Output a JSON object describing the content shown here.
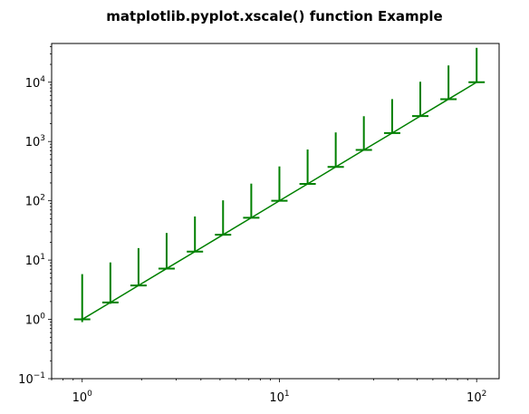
{
  "chart_data": {
    "type": "line",
    "title": "matplotlib.pyplot.xscale() function Example",
    "xlabel": "",
    "ylabel": "",
    "xscale": "log",
    "yscale": "log",
    "xlim": [
      0.7,
      130
    ],
    "ylim": [
      0.1,
      45000
    ],
    "grid": false,
    "legend": "none",
    "color": "#008000",
    "x_ticks": [
      {
        "value": 1,
        "base": "10",
        "exp": "0"
      },
      {
        "value": 10,
        "base": "10",
        "exp": "1"
      },
      {
        "value": 100,
        "base": "10",
        "exp": "2"
      }
    ],
    "y_ticks": [
      {
        "value": 0.1,
        "base": "10",
        "exp": "−1"
      },
      {
        "value": 1,
        "base": "10",
        "exp": "0"
      },
      {
        "value": 10,
        "base": "10",
        "exp": "1"
      },
      {
        "value": 100,
        "base": "10",
        "exp": "2"
      },
      {
        "value": 1000,
        "base": "10",
        "exp": "3"
      },
      {
        "value": 10000,
        "base": "10",
        "exp": "4"
      }
    ],
    "series": [
      {
        "x": [
          1.0,
          1.39,
          1.93,
          2.68,
          3.73,
          5.18,
          7.2,
          10.0,
          13.9,
          19.3,
          26.8,
          37.3,
          51.8,
          72.0,
          100.0
        ],
        "y": [
          1.0,
          1.93,
          3.73,
          7.2,
          13.9,
          26.8,
          51.8,
          100,
          193,
          373,
          720,
          1389,
          2683,
          5180,
          10000
        ],
        "yerr_upper": [
          4.8,
          7.2,
          12.2,
          21.5,
          40.5,
          75,
          143,
          280,
          540,
          1050,
          1950,
          3800,
          7500,
          14000,
          28000
        ],
        "yerr_lower": [
          0.1,
          0.1,
          0.1,
          0.1,
          0.1,
          0.1,
          0.1,
          0.1,
          0.1,
          0.1,
          0.1,
          0.1,
          0.1,
          0.1,
          0.1
        ]
      }
    ]
  }
}
